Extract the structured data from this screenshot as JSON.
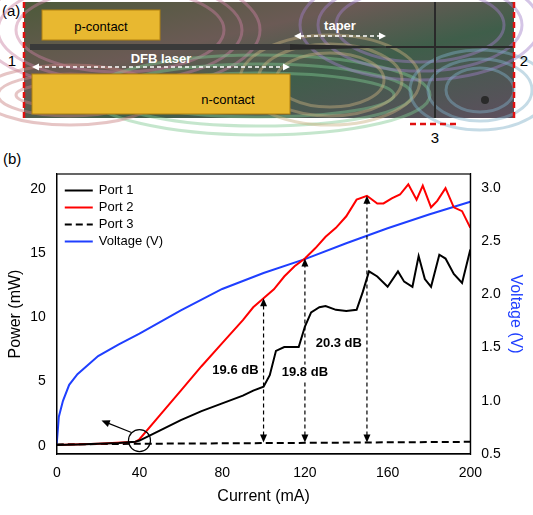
{
  "photo": {
    "panel": "(a)",
    "labels": {
      "p_contact": "p-contact",
      "dfb_laser": "DFB laser",
      "n_contact": "n-contact",
      "taper": "taper"
    },
    "ports": [
      "1",
      "2",
      "3"
    ]
  },
  "chart_data": {
    "panel": "(b)",
    "type": "line",
    "x_label": "Current (mA)",
    "y_label": "Power (mW)",
    "y2_label": "Voltage (V)",
    "xlim": [
      0,
      200
    ],
    "xticks": [
      0,
      40,
      80,
      120,
      160,
      200
    ],
    "ylim": [
      -0.65,
      21.2
    ],
    "yticks": [
      0,
      5,
      10,
      15,
      20
    ],
    "y2lim": [
      0.5,
      3.13
    ],
    "y2ticks": [
      0.5,
      {
        "value": 1,
        "label": "1.0"
      },
      1.5,
      {
        "value": 2,
        "label": "2.0"
      },
      2.5,
      {
        "value": 3,
        "label": "3.0"
      }
    ],
    "grid": false,
    "legend": "upper left",
    "series": [
      {
        "name": "Port 1",
        "color": "#000000",
        "line_style": "solid",
        "x": [
          0,
          10,
          20,
          30,
          38,
          40,
          50,
          60,
          70,
          80,
          90,
          95,
          100,
          103,
          106,
          110,
          117,
          120,
          123,
          127,
          130,
          135,
          140,
          145,
          148,
          151,
          155,
          160,
          165,
          168,
          172,
          175,
          178,
          181,
          185,
          188,
          192,
          196,
          200
        ],
        "values": [
          0.05,
          0.1,
          0.15,
          0.2,
          0.3,
          0.4,
          1.2,
          2.0,
          2.7,
          3.3,
          3.9,
          4.3,
          4.6,
          5.5,
          7.4,
          7.7,
          7.7,
          9.3,
          10.4,
          10.8,
          10.9,
          10.6,
          10.5,
          10.6,
          12.0,
          13.6,
          13.2,
          12.4,
          13.6,
          12.8,
          12.4,
          14.8,
          13.0,
          12.4,
          14.9,
          14.6,
          13.4,
          12.7,
          15.3
        ]
      },
      {
        "name": "Port 2",
        "color": "#ff0000",
        "line_style": "solid",
        "x": [
          0,
          20,
          38,
          40,
          50,
          60,
          70,
          80,
          90,
          95,
          100,
          105,
          110,
          115,
          120,
          125,
          130,
          135,
          140,
          145,
          150,
          155,
          158,
          162,
          166,
          170,
          174,
          177,
          181,
          184,
          188,
          192,
          196,
          200
        ],
        "values": [
          0.05,
          0.15,
          0.3,
          0.5,
          2.4,
          4.3,
          6.2,
          8.0,
          9.8,
          10.8,
          11.5,
          12.2,
          13.2,
          14.0,
          14.6,
          15.4,
          16.3,
          17.0,
          17.9,
          19.2,
          19.5,
          18.9,
          18.9,
          19.3,
          19.6,
          20.4,
          19.2,
          20.3,
          18.6,
          19.1,
          20.1,
          18.6,
          18.3,
          17.0
        ]
      },
      {
        "name": "Port 3",
        "color": "#000000",
        "line_style": "dashed",
        "x": [
          0,
          40,
          100,
          150,
          200
        ],
        "values": [
          0.1,
          0.15,
          0.2,
          0.25,
          0.3
        ]
      },
      {
        "name": "Voltage (V)",
        "color": "#1f3fff",
        "line_style": "solid",
        "axis": "y2",
        "x": [
          0,
          1,
          3,
          6,
          10,
          20,
          30,
          40,
          60,
          80,
          100,
          120,
          140,
          160,
          180,
          200
        ],
        "values": [
          0.6,
          0.85,
          1.0,
          1.15,
          1.25,
          1.42,
          1.53,
          1.63,
          1.85,
          2.05,
          2.2,
          2.33,
          2.48,
          2.62,
          2.75,
          2.87
        ]
      }
    ],
    "annotations": [
      {
        "type": "arrow",
        "text": "19.6 dB",
        "x": 100,
        "y_from": 0.25,
        "y_to": 11.5
      },
      {
        "type": "arrow",
        "text": "19.8 dB",
        "x": 120,
        "y_from": 0.25,
        "y_to": 14.6
      },
      {
        "type": "arrow",
        "text": "20.3 dB",
        "x": 150,
        "y_from": 0.25,
        "y_to": 19.5
      },
      {
        "type": "circle",
        "x": 40,
        "y": 0.4
      }
    ]
  }
}
